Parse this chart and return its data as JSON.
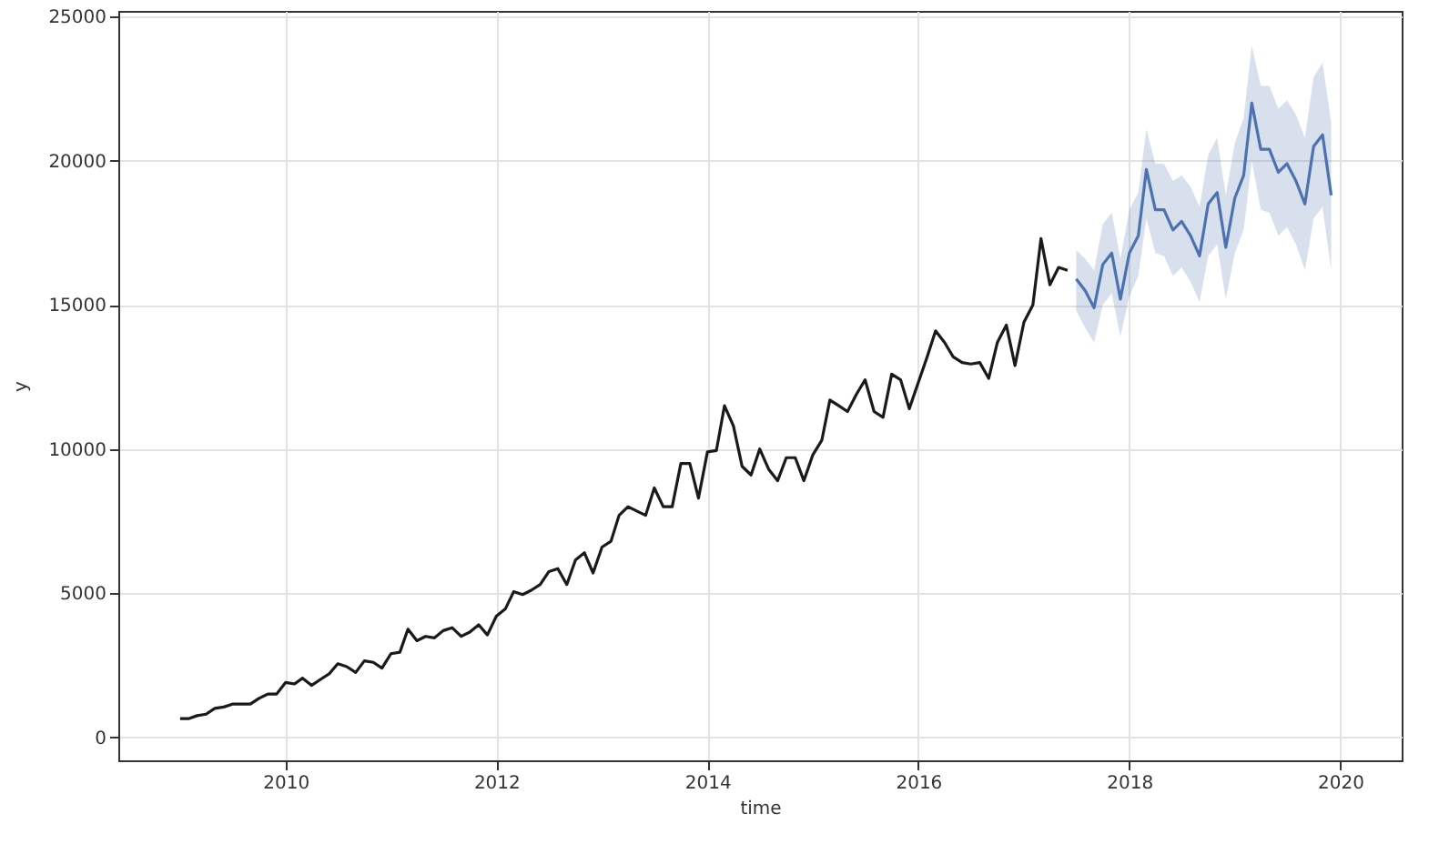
{
  "chart_data": {
    "type": "line",
    "xlabel": "time",
    "ylabel": "y",
    "xlim": [
      "2008-06",
      "2020-08"
    ],
    "xticks": [
      "2010",
      "2012",
      "2014",
      "2016",
      "2018",
      "2020"
    ],
    "ylim": [
      -800,
      25200
    ],
    "yticks": [
      0,
      5000,
      10000,
      15000,
      20000,
      25000
    ],
    "grid": true,
    "series": [
      {
        "color": "#1a1a1a",
        "x": [
          "2009-01",
          "2009-02",
          "2009-03",
          "2009-04",
          "2009-05",
          "2009-06",
          "2009-07",
          "2009-08",
          "2009-09",
          "2009-10",
          "2009-11",
          "2009-12",
          "2010-01",
          "2010-02",
          "2010-03",
          "2010-04",
          "2010-05",
          "2010-06",
          "2010-07",
          "2010-08",
          "2010-09",
          "2010-10",
          "2010-11",
          "2010-12",
          "2011-01",
          "2011-02",
          "2011-03",
          "2011-04",
          "2011-05",
          "2011-06",
          "2011-07",
          "2011-08",
          "2011-09",
          "2011-10",
          "2011-11",
          "2011-12",
          "2012-01",
          "2012-02",
          "2012-03",
          "2012-04",
          "2012-05",
          "2012-06",
          "2012-07",
          "2012-08",
          "2012-09",
          "2012-10",
          "2012-11",
          "2012-12",
          "2013-01",
          "2013-02",
          "2013-03",
          "2013-04",
          "2013-05",
          "2013-06",
          "2013-07",
          "2013-08",
          "2013-09",
          "2013-10",
          "2013-11",
          "2013-12",
          "2014-01",
          "2014-02",
          "2014-03",
          "2014-04",
          "2014-05",
          "2014-06",
          "2014-07",
          "2014-08",
          "2014-09",
          "2014-10",
          "2014-11",
          "2014-12",
          "2015-01",
          "2015-02",
          "2015-03",
          "2015-04",
          "2015-05",
          "2015-06",
          "2015-07",
          "2015-08",
          "2015-09",
          "2015-10",
          "2015-11",
          "2015-12",
          "2016-01",
          "2016-02",
          "2016-03",
          "2016-04",
          "2016-05",
          "2016-06",
          "2016-07",
          "2016-08",
          "2016-09",
          "2016-10",
          "2016-11",
          "2016-12",
          "2017-01",
          "2017-02",
          "2017-03",
          "2017-04",
          "2017-05",
          "2017-06"
        ],
        "values": [
          650,
          650,
          750,
          800,
          1000,
          1050,
          1150,
          1150,
          1150,
          1350,
          1500,
          1500,
          1900,
          1850,
          2050,
          1800,
          2000,
          2200,
          2550,
          2450,
          2250,
          2650,
          2600,
          2400,
          2900,
          2950,
          3750,
          3350,
          3500,
          3450,
          3700,
          3800,
          3500,
          3650,
          3900,
          3550,
          4200,
          4450,
          5050,
          4950,
          5100,
          5300,
          5750,
          5850,
          5300,
          6150,
          6400,
          5700,
          6600,
          6800,
          7700,
          8000,
          7850,
          7700,
          8650,
          8000,
          8000,
          9500,
          9500,
          8300,
          9900,
          9950,
          11500,
          10800,
          9400,
          9100,
          10000,
          9300,
          8900,
          9700,
          9700,
          8900,
          9800,
          10300,
          11700,
          11500,
          11300,
          11900,
          12400,
          11300,
          11100,
          12600,
          12400,
          11400,
          12300,
          13200,
          14100,
          13700,
          13200,
          13000,
          12950,
          13000,
          12450,
          13700,
          14300,
          12900,
          14400,
          15000,
          17300,
          15700,
          16300,
          16200
        ]
      },
      {
        "color": "#4c72b0",
        "x": [
          "2017-07",
          "2017-08",
          "2017-09",
          "2017-10",
          "2017-11",
          "2017-12",
          "2018-01",
          "2018-02",
          "2018-03",
          "2018-04",
          "2018-05",
          "2018-06",
          "2018-07",
          "2018-08",
          "2018-09",
          "2018-10",
          "2018-11",
          "2018-12",
          "2019-01",
          "2019-02",
          "2019-03",
          "2019-04",
          "2019-05",
          "2019-06",
          "2019-07",
          "2019-08",
          "2019-09",
          "2019-10",
          "2019-11",
          "2019-12"
        ],
        "values": [
          15900,
          15500,
          14900,
          16400,
          16800,
          15200,
          16800,
          17400,
          19700,
          18300,
          18300,
          17600,
          17900,
          17400,
          16700,
          18500,
          18900,
          17000,
          18700,
          19500,
          22000,
          20400,
          20400,
          19600,
          19900,
          19300,
          18500,
          20500,
          20900,
          18800
        ],
        "lower": [
          14800,
          14200,
          13700,
          15000,
          15400,
          13900,
          15300,
          16000,
          18000,
          16800,
          16700,
          16000,
          16300,
          15800,
          15100,
          16700,
          17100,
          15200,
          16800,
          17600,
          20000,
          18300,
          18200,
          17400,
          17700,
          17100,
          16200,
          18000,
          18400,
          16200
        ],
        "upper": [
          16900,
          16600,
          16200,
          17800,
          18200,
          16600,
          18300,
          18900,
          21100,
          19900,
          19900,
          19300,
          19500,
          19100,
          18400,
          20200,
          20800,
          18800,
          20600,
          21500,
          24000,
          22600,
          22600,
          21800,
          22100,
          21600,
          20800,
          22900,
          23400,
          21300
        ]
      }
    ]
  }
}
